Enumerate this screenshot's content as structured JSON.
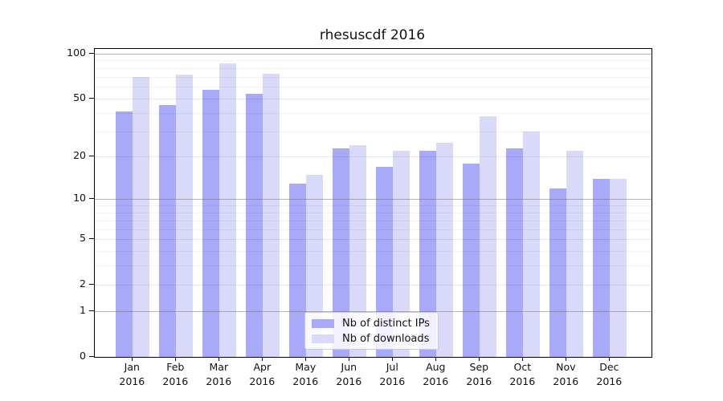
{
  "chart_data": {
    "type": "bar",
    "title": "rhesuscdf 2016",
    "year": "2016",
    "categories": [
      "Jan",
      "Feb",
      "Mar",
      "Apr",
      "May",
      "Jun",
      "Jul",
      "Aug",
      "Sep",
      "Oct",
      "Nov",
      "Dec"
    ],
    "series": [
      {
        "name": "Nb of distinct IPs",
        "key": "distinct-ips",
        "color": "#a9a9f9",
        "values": [
          41,
          45,
          57,
          54,
          13,
          23,
          17,
          22,
          18,
          23,
          12,
          14
        ]
      },
      {
        "name": "Nb of downloads",
        "key": "downloads",
        "color": "#d9d9f9",
        "values": [
          70,
          72,
          86,
          73,
          15,
          24,
          22,
          25,
          38,
          30,
          22,
          14
        ]
      }
    ],
    "yscale": "log1p",
    "ylim": [
      0,
      108
    ],
    "y_major_ticks": [
      0,
      1,
      2,
      5,
      10,
      20,
      50,
      100
    ],
    "y_decade_gridlines": [
      1,
      10,
      100
    ],
    "y_minor_gridlines": [
      3,
      4,
      6,
      7,
      8,
      9,
      30,
      40,
      60,
      70,
      80,
      90
    ],
    "grid": true,
    "legend_position": "lower center inside",
    "axis_color": "#000000",
    "text_color": "#111111",
    "background_color": "#ffffff"
  }
}
